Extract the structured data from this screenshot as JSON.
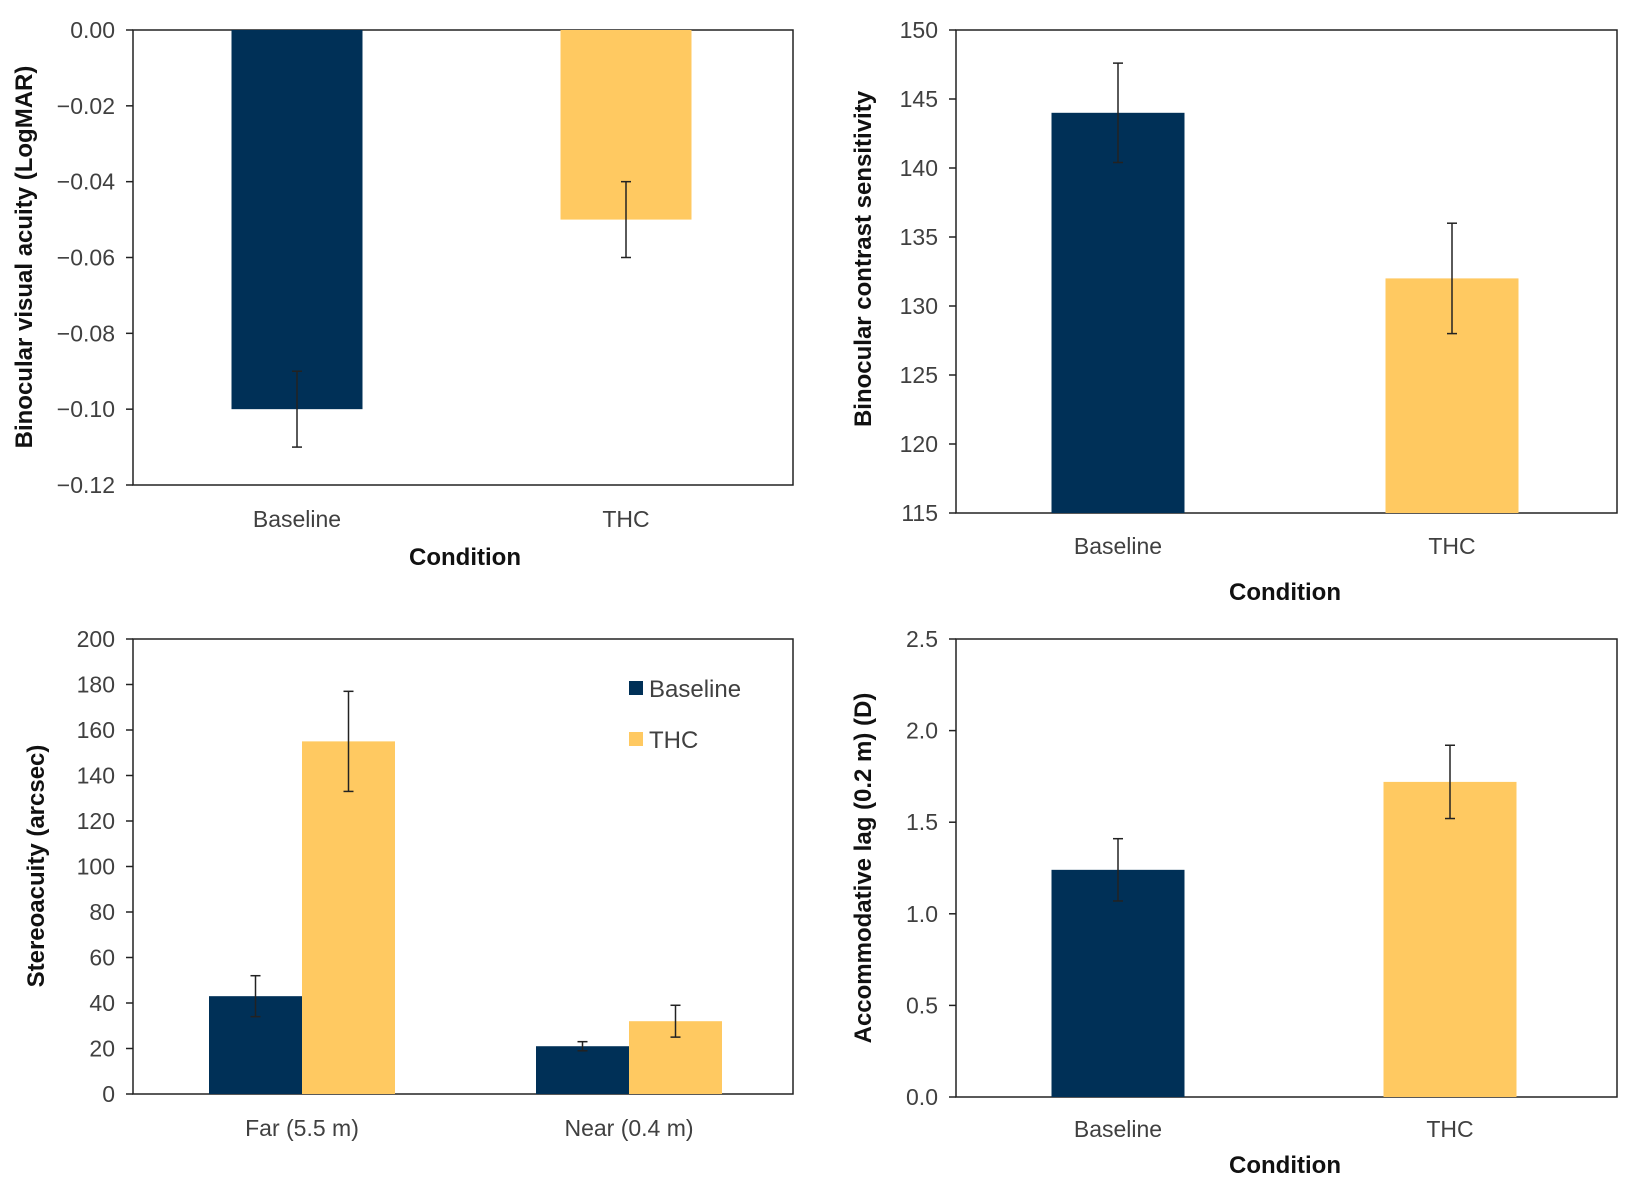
{
  "colors": {
    "baseline": "#003057",
    "thc": "#FFC961",
    "frame": "#222222",
    "text": "#404040"
  },
  "chart_data": [
    {
      "type": "bar",
      "categories": [
        "Baseline",
        "THC"
      ],
      "values": [
        -0.1,
        -0.05
      ],
      "errors": [
        0.01,
        0.01
      ],
      "ylim": [
        -0.12,
        0.0
      ],
      "yticks": [
        "0.00",
        "−0.02",
        "−0.04",
        "−0.06",
        "−0.08",
        "−0.10",
        "−0.12"
      ],
      "xlabel": "Condition",
      "ylabel": "Binocular visual acuity  (LogMAR)",
      "grid": false
    },
    {
      "type": "bar",
      "categories": [
        "Baseline",
        "THC"
      ],
      "values": [
        144,
        132
      ],
      "errors": [
        3.6,
        4.0
      ],
      "ylim": [
        115,
        150
      ],
      "yticks": [
        "150",
        "145",
        "140",
        "135",
        "130",
        "125",
        "120",
        "115"
      ],
      "xlabel": "Condition",
      "ylabel": "Binocular contrast sensitivity",
      "grid": false
    },
    {
      "type": "bar",
      "categories": [
        "Far (5.5 m)",
        "Near (0.4 m)"
      ],
      "series": [
        {
          "name": "Baseline",
          "values": [
            43,
            21
          ],
          "errors": [
            9,
            2
          ]
        },
        {
          "name": "THC",
          "values": [
            155,
            32
          ],
          "errors": [
            22,
            7
          ]
        }
      ],
      "ylim": [
        0,
        200
      ],
      "yticks": [
        "200",
        "180",
        "160",
        "140",
        "120",
        "100",
        "80",
        "60",
        "40",
        "20",
        "0"
      ],
      "xlabel": "",
      "ylabel": "Stereoacuity (arcsec)",
      "legend": "top-right",
      "grid": false
    },
    {
      "type": "bar",
      "categories": [
        "Baseline",
        "THC"
      ],
      "values": [
        1.24,
        1.72
      ],
      "errors": [
        0.17,
        0.2
      ],
      "ylim": [
        0.0,
        2.5
      ],
      "yticks": [
        "2.5",
        "2.0",
        "1.5",
        "1.0",
        "0.5",
        "0.0"
      ],
      "xlabel": "Condition",
      "ylabel": "Accommodative lag (0.2 m) (D)",
      "grid": false
    }
  ]
}
